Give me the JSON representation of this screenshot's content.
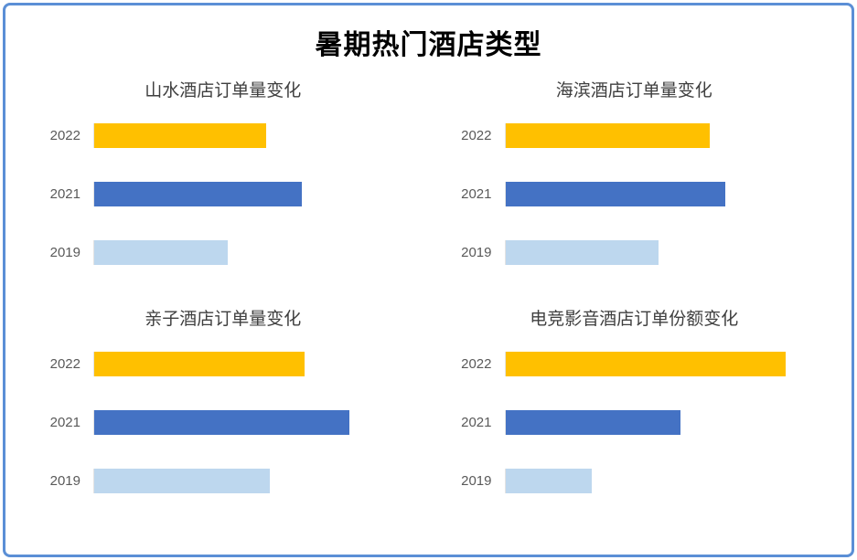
{
  "title": "暑期热门酒店类型",
  "colors": {
    "bar_2022": "#FFC000",
    "bar_2021": "#4472C4",
    "bar_2019": "#BDD7EE",
    "frame_border": "#5B8FD6",
    "subtitle_text": "#3F3F3F",
    "category_text": "#595959"
  },
  "chart_data": [
    {
      "type": "bar",
      "orientation": "horizontal",
      "title": "山水酒店订单量变化",
      "categories": [
        "2022",
        "2021",
        "2019"
      ],
      "values": [
        54,
        65,
        42
      ],
      "unit": "relative length, % of plot width (no numeric axis shown)",
      "colors": [
        "#FFC000",
        "#4472C4",
        "#BDD7EE"
      ],
      "xlabel": "",
      "ylabel": "",
      "grid": false,
      "legend": false
    },
    {
      "type": "bar",
      "orientation": "horizontal",
      "title": "海滨酒店订单量变化",
      "categories": [
        "2022",
        "2021",
        "2019"
      ],
      "values": [
        64,
        69,
        48
      ],
      "unit": "relative length, % of plot width (no numeric axis shown)",
      "colors": [
        "#FFC000",
        "#4472C4",
        "#BDD7EE"
      ],
      "xlabel": "",
      "ylabel": "",
      "grid": false,
      "legend": false
    },
    {
      "type": "bar",
      "orientation": "horizontal",
      "title": "亲子酒店订单量变化",
      "categories": [
        "2022",
        "2021",
        "2019"
      ],
      "values": [
        66,
        80,
        55
      ],
      "unit": "relative length, % of plot width (no numeric axis shown)",
      "colors": [
        "#FFC000",
        "#4472C4",
        "#BDD7EE"
      ],
      "xlabel": "",
      "ylabel": "",
      "grid": false,
      "legend": false
    },
    {
      "type": "bar",
      "orientation": "horizontal",
      "title": "电竞影音酒店订单份额变化",
      "categories": [
        "2022",
        "2021",
        "2019"
      ],
      "values": [
        88,
        55,
        27
      ],
      "unit": "relative length, % of plot width (no numeric axis shown)",
      "colors": [
        "#FFC000",
        "#4472C4",
        "#BDD7EE"
      ],
      "xlabel": "",
      "ylabel": "",
      "grid": false,
      "legend": false
    }
  ]
}
